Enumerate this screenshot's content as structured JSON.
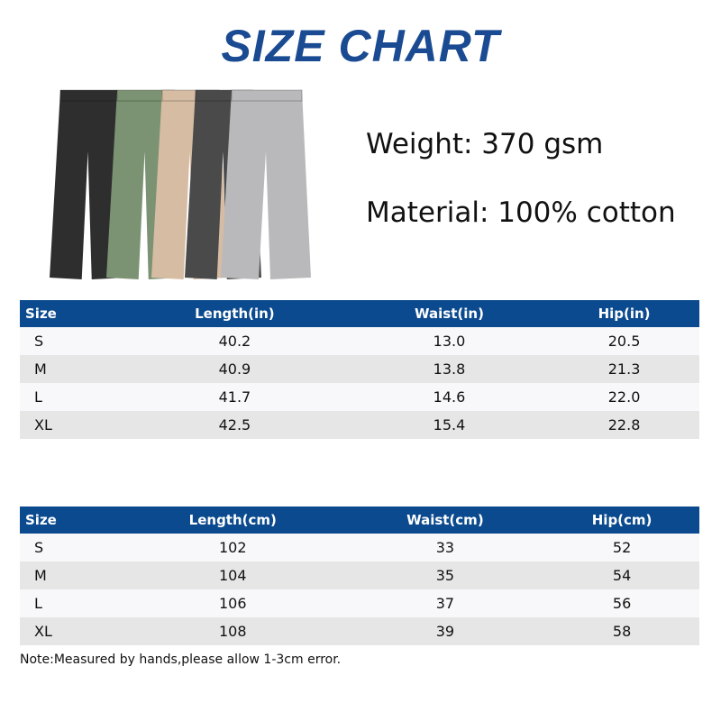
{
  "title": "SIZE CHART",
  "specs": {
    "weight": "Weight: 370 gsm",
    "material": "Material: 100% cotton"
  },
  "product_colors": [
    "#2e2e2e",
    "#7c9373",
    "#d6bca3",
    "#4a4a4a",
    "#b9b9bb"
  ],
  "table_in": {
    "headers": [
      "Size",
      "Length(in)",
      "Waist(in)",
      "Hip(in)"
    ],
    "rows": [
      [
        "S",
        "40.2",
        "13.0",
        "20.5"
      ],
      [
        "M",
        "40.9",
        "13.8",
        "21.3"
      ],
      [
        "L",
        "41.7",
        "14.6",
        "22.0"
      ],
      [
        "XL",
        "42.5",
        "15.4",
        "22.8"
      ]
    ]
  },
  "table_cm": {
    "headers": [
      "Size",
      "Length(cm)",
      "Waist(cm)",
      "Hip(cm)"
    ],
    "rows": [
      [
        "S",
        "102",
        "33",
        "52"
      ],
      [
        "M",
        "104",
        "35",
        "54"
      ],
      [
        "L",
        "106",
        "37",
        "56"
      ],
      [
        "XL",
        "108",
        "39",
        "58"
      ]
    ]
  },
  "note": "Note:Measured by hands,please allow 1-3cm error.",
  "colors": {
    "header_bg": "#0b4a8e",
    "title": "#1a4b92",
    "alt_row": "#e6e6e6"
  }
}
